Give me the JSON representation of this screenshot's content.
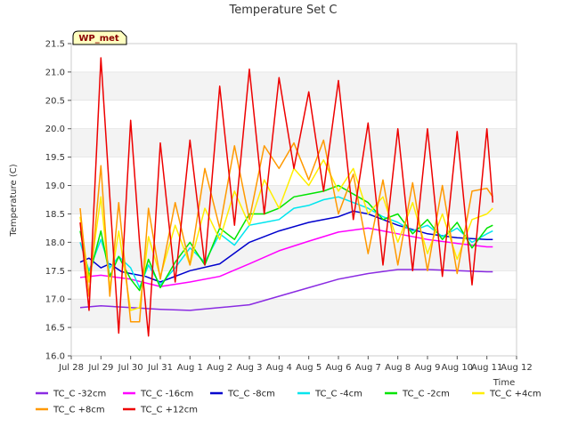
{
  "chart_data": {
    "type": "line",
    "title": "Temperature Set C",
    "xlabel": "Time",
    "ylabel": "Temperature (C)",
    "badge": "WP_met",
    "xlim": [
      0,
      15
    ],
    "ylim": [
      16.0,
      21.5
    ],
    "x_ticks": [
      {
        "v": 0,
        "label": "Jul 28"
      },
      {
        "v": 1,
        "label": "Jul 29"
      },
      {
        "v": 2,
        "label": "Jul 30"
      },
      {
        "v": 3,
        "label": "Jul 31"
      },
      {
        "v": 4,
        "label": "Aug 1"
      },
      {
        "v": 5,
        "label": "Aug 2"
      },
      {
        "v": 6,
        "label": "Aug 3"
      },
      {
        "v": 7,
        "label": "Aug 4"
      },
      {
        "v": 8,
        "label": "Aug 5"
      },
      {
        "v": 9,
        "label": "Aug 6"
      },
      {
        "v": 10,
        "label": "Aug 7"
      },
      {
        "v": 11,
        "label": "Aug 8"
      },
      {
        "v": 12,
        "label": "Aug 9"
      },
      {
        "v": 13,
        "label": "Aug 10"
      },
      {
        "v": 14,
        "label": "Aug 11"
      },
      {
        "v": 15,
        "label": "Aug 12"
      }
    ],
    "y_ticks": [
      "16.0",
      "16.5",
      "17.0",
      "17.5",
      "18.0",
      "18.5",
      "19.0",
      "19.5",
      "20.0",
      "20.5",
      "21.0",
      "21.5"
    ],
    "grid": "horizontal bands",
    "legend_placement": "bottom",
    "series": [
      {
        "name": "TC_C -32cm",
        "color": "#8a2be2",
        "points": [
          [
            0.3,
            16.85
          ],
          [
            1,
            16.88
          ],
          [
            2,
            16.85
          ],
          [
            3,
            16.82
          ],
          [
            4,
            16.8
          ],
          [
            5,
            16.85
          ],
          [
            6,
            16.9
          ],
          [
            7,
            17.05
          ],
          [
            8,
            17.2
          ],
          [
            9,
            17.35
          ],
          [
            10,
            17.45
          ],
          [
            11,
            17.52
          ],
          [
            12,
            17.52
          ],
          [
            13,
            17.5
          ],
          [
            14,
            17.48
          ],
          [
            14.2,
            17.48
          ]
        ]
      },
      {
        "name": "TC_C -16cm",
        "color": "#ff00ff",
        "points": [
          [
            0.3,
            17.38
          ],
          [
            1,
            17.42
          ],
          [
            2,
            17.35
          ],
          [
            3,
            17.22
          ],
          [
            4,
            17.3
          ],
          [
            5,
            17.4
          ],
          [
            6,
            17.62
          ],
          [
            7,
            17.85
          ],
          [
            8,
            18.02
          ],
          [
            9,
            18.18
          ],
          [
            10,
            18.25
          ],
          [
            11,
            18.15
          ],
          [
            12,
            18.05
          ],
          [
            13,
            17.98
          ],
          [
            14,
            17.92
          ],
          [
            14.2,
            17.92
          ]
        ]
      },
      {
        "name": "TC_C -8cm",
        "color": "#0000cd",
        "points": [
          [
            0.3,
            17.65
          ],
          [
            0.6,
            17.72
          ],
          [
            1,
            17.55
          ],
          [
            1.3,
            17.62
          ],
          [
            1.7,
            17.48
          ],
          [
            2,
            17.45
          ],
          [
            2.5,
            17.4
          ],
          [
            3,
            17.3
          ],
          [
            4,
            17.5
          ],
          [
            5,
            17.62
          ],
          [
            6,
            18.0
          ],
          [
            7,
            18.2
          ],
          [
            8,
            18.35
          ],
          [
            9,
            18.45
          ],
          [
            9.5,
            18.55
          ],
          [
            10,
            18.5
          ],
          [
            10.5,
            18.4
          ],
          [
            11,
            18.3
          ],
          [
            12,
            18.15
          ],
          [
            13,
            18.08
          ],
          [
            14,
            18.05
          ],
          [
            14.2,
            18.05
          ]
        ]
      },
      {
        "name": "TC_C -4cm",
        "color": "#00e5ee",
        "points": [
          [
            0.3,
            18.0
          ],
          [
            0.6,
            17.5
          ],
          [
            1,
            18.05
          ],
          [
            1.3,
            17.55
          ],
          [
            1.6,
            17.75
          ],
          [
            2,
            17.55
          ],
          [
            2.3,
            17.2
          ],
          [
            2.6,
            17.6
          ],
          [
            3,
            17.25
          ],
          [
            3.5,
            17.55
          ],
          [
            4,
            17.9
          ],
          [
            4.5,
            17.65
          ],
          [
            5,
            18.15
          ],
          [
            5.5,
            17.95
          ],
          [
            6,
            18.3
          ],
          [
            6.5,
            18.35
          ],
          [
            7,
            18.4
          ],
          [
            7.5,
            18.6
          ],
          [
            8,
            18.65
          ],
          [
            8.5,
            18.75
          ],
          [
            9,
            18.8
          ],
          [
            9.5,
            18.7
          ],
          [
            10,
            18.6
          ],
          [
            10.5,
            18.45
          ],
          [
            11,
            18.35
          ],
          [
            11.5,
            18.2
          ],
          [
            12,
            18.3
          ],
          [
            12.5,
            18.1
          ],
          [
            13,
            18.25
          ],
          [
            13.5,
            18.0
          ],
          [
            14,
            18.15
          ],
          [
            14.2,
            18.2
          ]
        ]
      },
      {
        "name": "TC_C -2cm",
        "color": "#00e400",
        "points": [
          [
            0.3,
            18.2
          ],
          [
            0.6,
            17.4
          ],
          [
            1,
            18.2
          ],
          [
            1.3,
            17.4
          ],
          [
            1.6,
            17.75
          ],
          [
            2,
            17.35
          ],
          [
            2.3,
            17.15
          ],
          [
            2.6,
            17.7
          ],
          [
            3,
            17.2
          ],
          [
            3.5,
            17.65
          ],
          [
            4,
            18.0
          ],
          [
            4.5,
            17.6
          ],
          [
            5,
            18.25
          ],
          [
            5.5,
            18.05
          ],
          [
            6,
            18.5
          ],
          [
            6.5,
            18.5
          ],
          [
            7,
            18.6
          ],
          [
            7.5,
            18.8
          ],
          [
            8,
            18.85
          ],
          [
            8.5,
            18.9
          ],
          [
            9,
            19.0
          ],
          [
            9.5,
            18.85
          ],
          [
            10,
            18.7
          ],
          [
            10.5,
            18.4
          ],
          [
            11,
            18.5
          ],
          [
            11.5,
            18.15
          ],
          [
            12,
            18.4
          ],
          [
            12.5,
            18.05
          ],
          [
            13,
            18.35
          ],
          [
            13.5,
            17.9
          ],
          [
            14,
            18.25
          ],
          [
            14.2,
            18.3
          ]
        ]
      },
      {
        "name": "TC_C +4cm",
        "color": "#ffee00",
        "points": [
          [
            0.3,
            18.45
          ],
          [
            0.6,
            17.3
          ],
          [
            1,
            18.8
          ],
          [
            1.3,
            17.2
          ],
          [
            1.6,
            18.2
          ],
          [
            2,
            16.8
          ],
          [
            2.3,
            16.85
          ],
          [
            2.6,
            18.1
          ],
          [
            3,
            17.4
          ],
          [
            3.5,
            18.3
          ],
          [
            4,
            17.6
          ],
          [
            4.5,
            18.6
          ],
          [
            5,
            18.05
          ],
          [
            5.5,
            18.9
          ],
          [
            6,
            18.3
          ],
          [
            6.5,
            19.1
          ],
          [
            7,
            18.6
          ],
          [
            7.5,
            19.3
          ],
          [
            8,
            19.0
          ],
          [
            8.5,
            19.45
          ],
          [
            9,
            18.9
          ],
          [
            9.5,
            19.3
          ],
          [
            10,
            18.5
          ],
          [
            10.5,
            18.8
          ],
          [
            11,
            18.0
          ],
          [
            11.5,
            18.7
          ],
          [
            12,
            17.8
          ],
          [
            12.5,
            18.5
          ],
          [
            13,
            17.7
          ],
          [
            13.5,
            18.4
          ],
          [
            14,
            18.5
          ],
          [
            14.2,
            18.6
          ]
        ]
      },
      {
        "name": "TC_C +8cm",
        "color": "#ff9900",
        "points": [
          [
            0.3,
            18.6
          ],
          [
            0.6,
            17.05
          ],
          [
            1,
            19.35
          ],
          [
            1.3,
            17.05
          ],
          [
            1.6,
            18.7
          ],
          [
            2,
            16.6
          ],
          [
            2.3,
            16.6
          ],
          [
            2.6,
            18.6
          ],
          [
            3,
            17.35
          ],
          [
            3.5,
            18.7
          ],
          [
            4,
            17.6
          ],
          [
            4.5,
            19.3
          ],
          [
            5,
            18.25
          ],
          [
            5.5,
            19.7
          ],
          [
            6,
            18.4
          ],
          [
            6.5,
            19.7
          ],
          [
            7,
            19.3
          ],
          [
            7.5,
            19.75
          ],
          [
            8,
            19.1
          ],
          [
            8.5,
            19.8
          ],
          [
            9,
            18.5
          ],
          [
            9.5,
            19.2
          ],
          [
            10,
            17.8
          ],
          [
            10.5,
            19.1
          ],
          [
            11,
            17.6
          ],
          [
            11.5,
            19.05
          ],
          [
            12,
            17.5
          ],
          [
            12.5,
            19.0
          ],
          [
            13,
            17.45
          ],
          [
            13.5,
            18.9
          ],
          [
            14,
            18.95
          ],
          [
            14.2,
            18.8
          ]
        ]
      },
      {
        "name": "TC_C +12cm",
        "color": "#ee0000",
        "points": [
          [
            0.3,
            18.35
          ],
          [
            0.6,
            16.8
          ],
          [
            1,
            21.25
          ],
          [
            1.3,
            18.8
          ],
          [
            1.6,
            16.4
          ],
          [
            2,
            20.15
          ],
          [
            2.3,
            18.0
          ],
          [
            2.6,
            16.35
          ],
          [
            3,
            19.75
          ],
          [
            3.5,
            17.3
          ],
          [
            4,
            19.8
          ],
          [
            4.5,
            17.6
          ],
          [
            5,
            20.75
          ],
          [
            5.5,
            18.3
          ],
          [
            6,
            21.05
          ],
          [
            6.5,
            18.5
          ],
          [
            7,
            20.9
          ],
          [
            7.5,
            19.3
          ],
          [
            8,
            20.65
          ],
          [
            8.5,
            18.9
          ],
          [
            9,
            20.85
          ],
          [
            9.5,
            18.4
          ],
          [
            10,
            20.1
          ],
          [
            10.5,
            17.6
          ],
          [
            11,
            20.0
          ],
          [
            11.5,
            17.5
          ],
          [
            12,
            20.0
          ],
          [
            12.5,
            17.4
          ],
          [
            13,
            19.95
          ],
          [
            13.5,
            17.25
          ],
          [
            14,
            20.0
          ],
          [
            14.2,
            18.7
          ]
        ]
      }
    ]
  }
}
